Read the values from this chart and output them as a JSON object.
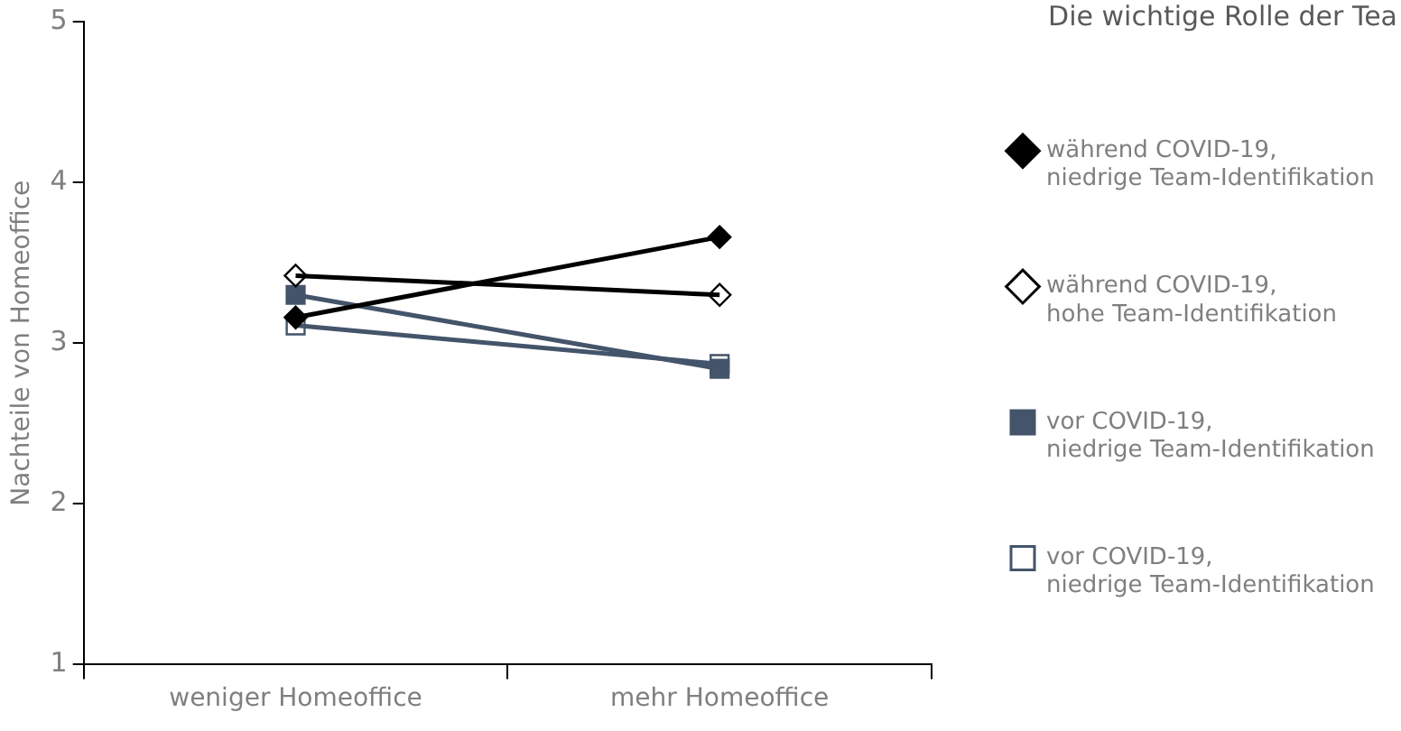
{
  "chart_data": {
    "type": "line",
    "title": "Die wichtige Rolle der Tea",
    "ylabel": "Nachteile von Homeoffice",
    "categories": [
      "weniger Homeoffice",
      "mehr Homeoffice"
    ],
    "series": [
      {
        "name": "während COVID-19, niedrige Team-Identifikation",
        "color": "#000000",
        "marker": "diamond",
        "values": [
          3.16,
          3.66
        ]
      },
      {
        "name": "während COVID-19, hohe Team-Identifikation",
        "color": "#000000",
        "marker": "diamond",
        "values": [
          3.42,
          3.3
        ]
      },
      {
        "name": "vor COVID-19, niedrige Team-Identifikation",
        "color": "#44546a",
        "marker": "square",
        "values": [
          3.3,
          2.84
        ]
      },
      {
        "name": "vor COVID-19, niedrige Team-Identifikation",
        "color": "#44546a",
        "marker": "square",
        "values": [
          3.11,
          2.87
        ]
      }
    ],
    "ylim": [
      1,
      5
    ],
    "yticks": [
      1,
      2,
      3,
      4,
      5
    ],
    "grid": false,
    "legend": "right",
    "line_style": "solid"
  }
}
